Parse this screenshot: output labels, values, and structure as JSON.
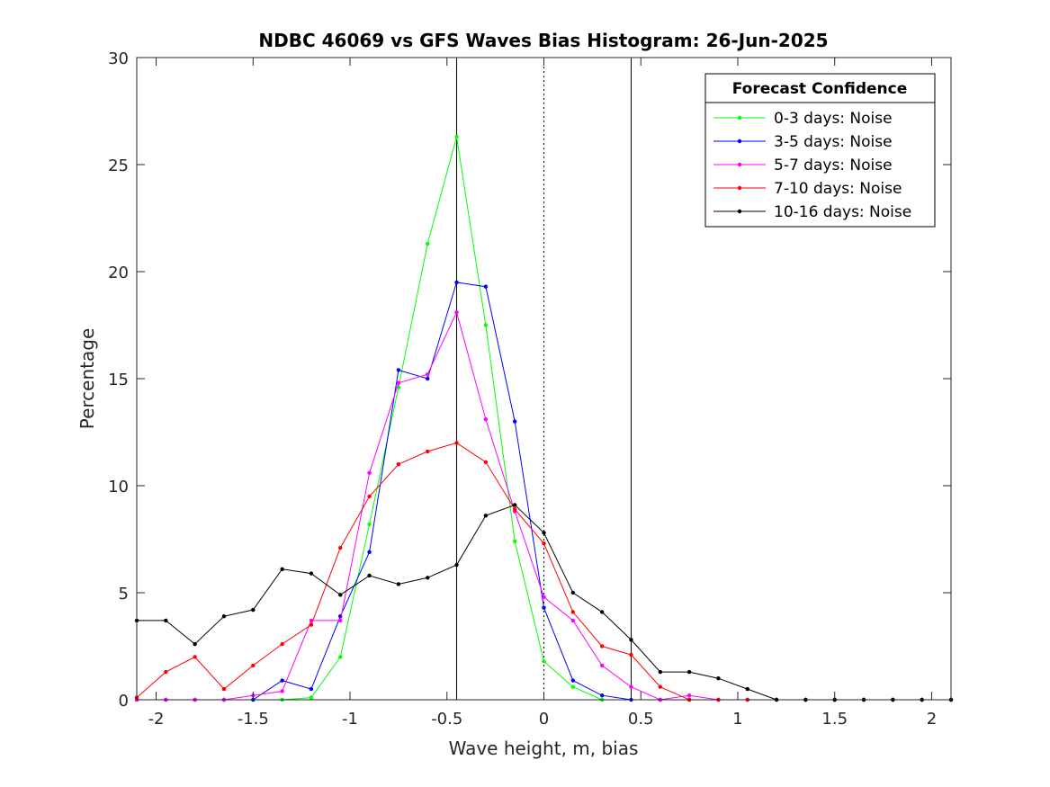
{
  "chart_data": {
    "type": "line",
    "title": "NDBC 46069 vs GFS Waves Bias Histogram: 26-Jun-2025",
    "xlabel": "Wave height, m, bias",
    "ylabel": "Percentage",
    "xlim": [
      -2.1,
      2.1
    ],
    "ylim": [
      0,
      30
    ],
    "xticks": [
      -2,
      -1.5,
      -1,
      -0.5,
      0,
      0.5,
      1,
      1.5,
      2
    ],
    "xtick_labels": [
      "-2",
      "-1.5",
      "-1",
      "-0.5",
      "0",
      "0.5",
      "1",
      "1.5",
      "2"
    ],
    "yticks": [
      0,
      5,
      10,
      15,
      20,
      25,
      30
    ],
    "ytick_labels": [
      "0",
      "5",
      "10",
      "15",
      "20",
      "25",
      "30"
    ],
    "grid": false,
    "legend_title": "Forecast Confidence",
    "legend_position": "top-right",
    "reference_lines": [
      {
        "x": -0.45,
        "style": "solid",
        "color": "#000000"
      },
      {
        "x": 0,
        "style": "dotted",
        "color": "#000000"
      },
      {
        "x": 0.45,
        "style": "solid",
        "color": "#000000"
      }
    ],
    "x": [
      -2.1,
      -1.95,
      -1.8,
      -1.65,
      -1.5,
      -1.35,
      -1.2,
      -1.05,
      -0.9,
      -0.75,
      -0.6,
      -0.45,
      -0.3,
      -0.15,
      0,
      0.15,
      0.3,
      0.45,
      0.6,
      0.75,
      0.9,
      1.05,
      1.2,
      1.35,
      1.5,
      1.65,
      1.8,
      1.95,
      2.1
    ],
    "series": [
      {
        "name": "0-3 days: Noise",
        "color": "#00ff00",
        "values": [
          0,
          0,
          0,
          0,
          0,
          0,
          0.1,
          2.0,
          8.2,
          14.6,
          21.3,
          26.3,
          17.5,
          7.4,
          1.8,
          0.6,
          0.0,
          0,
          0,
          0,
          0,
          0,
          0,
          0,
          0,
          0,
          0,
          0,
          0
        ]
      },
      {
        "name": "3-5 days: Noise",
        "color": "#0000ff",
        "values": [
          0,
          0,
          0,
          0,
          0.0,
          0.9,
          0.5,
          3.9,
          6.9,
          15.4,
          15.0,
          19.5,
          19.3,
          13.0,
          4.3,
          0.9,
          0.2,
          0,
          0,
          0,
          0,
          0,
          0,
          0,
          0,
          0,
          0,
          0,
          0
        ]
      },
      {
        "name": "5-7 days: Noise",
        "color": "#ff00ff",
        "values": [
          0,
          0,
          0,
          0,
          0.2,
          0.4,
          3.7,
          3.7,
          10.6,
          14.8,
          15.2,
          18.1,
          13.1,
          8.8,
          4.8,
          3.7,
          1.6,
          0.6,
          0,
          0.2,
          0,
          0,
          0,
          0,
          0,
          0,
          0,
          0,
          0
        ]
      },
      {
        "name": "7-10 days: Noise",
        "color": "#ff0000",
        "values": [
          0.1,
          1.3,
          2.0,
          0.5,
          1.6,
          2.6,
          3.5,
          7.1,
          9.5,
          11.0,
          11.6,
          12.0,
          11.1,
          8.9,
          7.3,
          4.1,
          2.5,
          2.1,
          0.6,
          0,
          0,
          0,
          0,
          0,
          0,
          0,
          0,
          0,
          0
        ]
      },
      {
        "name": "10-16 days: Noise",
        "color": "#000000",
        "values": [
          3.7,
          3.7,
          2.6,
          3.9,
          4.2,
          6.1,
          5.9,
          4.9,
          5.8,
          5.4,
          5.7,
          6.3,
          8.6,
          9.1,
          7.8,
          5.0,
          4.1,
          2.8,
          1.3,
          1.3,
          1.0,
          0.5,
          0,
          0,
          0,
          0,
          0,
          0,
          0
        ]
      }
    ]
  }
}
